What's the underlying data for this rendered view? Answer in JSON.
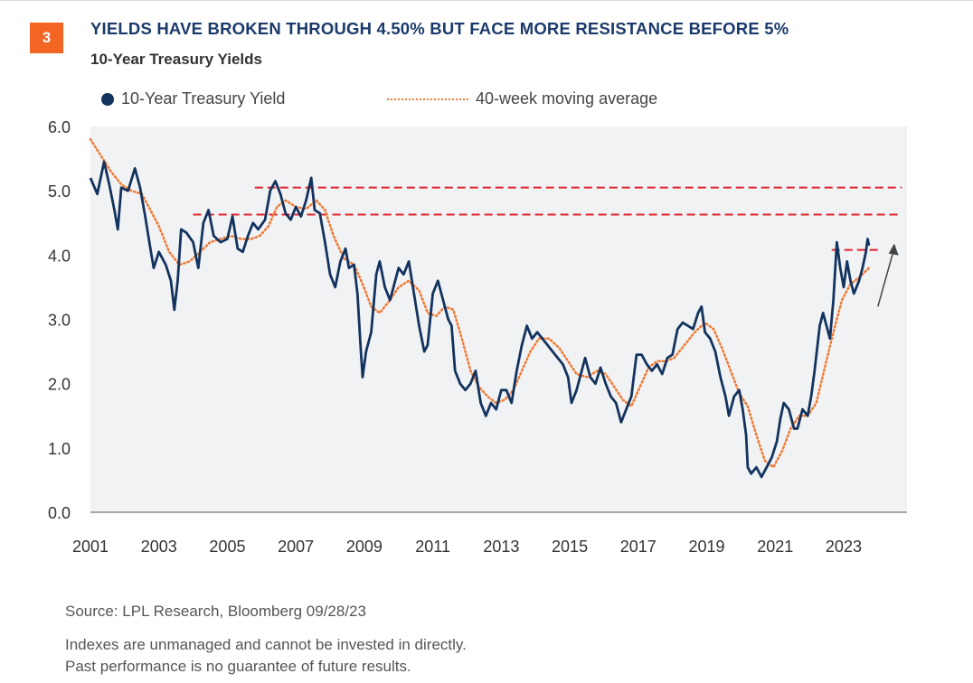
{
  "badge": "3",
  "title": "YIELDS HAVE BROKEN THROUGH 4.50% BUT FACE MORE RESISTANCE BEFORE 5%",
  "subtitle": "10-Year Treasury Yields",
  "footer": {
    "source": "Source: LPL Research, Bloomberg 09/28/23",
    "disclaimer1": "Indexes are unmanaged and cannot be invested in directly.",
    "disclaimer2": "Past performance is no guarantee of future results."
  },
  "colors": {
    "yield": "#13335f",
    "moving_average": "#f07a33",
    "resistance": "#e0242f",
    "arrow": "#444444",
    "plot_bg": "#f1f2f4"
  },
  "chart_data": {
    "type": "line",
    "legend_position": "top-left",
    "grid": false,
    "xlim": [
      2001,
      2024.85
    ],
    "ylim": [
      0,
      6.0
    ],
    "x_ticks": [
      "2001",
      "2003",
      "2005",
      "2007",
      "2009",
      "2011",
      "2013",
      "2015",
      "2017",
      "2019",
      "2021",
      "2023"
    ],
    "y_ticks": [
      "0.0",
      "1.0",
      "2.0",
      "3.0",
      "4.0",
      "5.0",
      "6.0"
    ],
    "series": [
      {
        "name": "10-Year Treasury Yield",
        "style": "line",
        "points": [
          [
            2001.0,
            5.2
          ],
          [
            2001.2,
            4.95
          ],
          [
            2001.4,
            5.45
          ],
          [
            2001.55,
            5.1
          ],
          [
            2001.7,
            4.7
          ],
          [
            2001.8,
            4.4
          ],
          [
            2001.9,
            5.05
          ],
          [
            2002.1,
            5.0
          ],
          [
            2002.3,
            5.35
          ],
          [
            2002.45,
            5.05
          ],
          [
            2002.6,
            4.6
          ],
          [
            2002.75,
            4.1
          ],
          [
            2002.85,
            3.8
          ],
          [
            2003.0,
            4.05
          ],
          [
            2003.2,
            3.85
          ],
          [
            2003.35,
            3.6
          ],
          [
            2003.45,
            3.15
          ],
          [
            2003.55,
            3.6
          ],
          [
            2003.65,
            4.4
          ],
          [
            2003.8,
            4.35
          ],
          [
            2004.0,
            4.2
          ],
          [
            2004.15,
            3.8
          ],
          [
            2004.3,
            4.5
          ],
          [
            2004.45,
            4.7
          ],
          [
            2004.6,
            4.3
          ],
          [
            2004.8,
            4.2
          ],
          [
            2005.0,
            4.25
          ],
          [
            2005.15,
            4.6
          ],
          [
            2005.3,
            4.1
          ],
          [
            2005.45,
            4.05
          ],
          [
            2005.6,
            4.3
          ],
          [
            2005.75,
            4.5
          ],
          [
            2005.9,
            4.4
          ],
          [
            2006.1,
            4.55
          ],
          [
            2006.25,
            5.0
          ],
          [
            2006.4,
            5.15
          ],
          [
            2006.55,
            4.95
          ],
          [
            2006.7,
            4.65
          ],
          [
            2006.85,
            4.55
          ],
          [
            2007.0,
            4.75
          ],
          [
            2007.15,
            4.6
          ],
          [
            2007.3,
            4.85
          ],
          [
            2007.45,
            5.2
          ],
          [
            2007.55,
            4.7
          ],
          [
            2007.7,
            4.65
          ],
          [
            2007.85,
            4.2
          ],
          [
            2008.0,
            3.7
          ],
          [
            2008.15,
            3.5
          ],
          [
            2008.3,
            3.9
          ],
          [
            2008.45,
            4.1
          ],
          [
            2008.55,
            3.8
          ],
          [
            2008.7,
            3.85
          ],
          [
            2008.8,
            3.4
          ],
          [
            2008.9,
            2.5
          ],
          [
            2008.95,
            2.1
          ],
          [
            2009.05,
            2.5
          ],
          [
            2009.2,
            2.8
          ],
          [
            2009.35,
            3.7
          ],
          [
            2009.45,
            3.9
          ],
          [
            2009.6,
            3.5
          ],
          [
            2009.75,
            3.3
          ],
          [
            2009.85,
            3.5
          ],
          [
            2010.0,
            3.8
          ],
          [
            2010.15,
            3.7
          ],
          [
            2010.3,
            3.9
          ],
          [
            2010.45,
            3.4
          ],
          [
            2010.6,
            2.9
          ],
          [
            2010.75,
            2.5
          ],
          [
            2010.85,
            2.6
          ],
          [
            2011.0,
            3.4
          ],
          [
            2011.15,
            3.6
          ],
          [
            2011.3,
            3.3
          ],
          [
            2011.45,
            3.0
          ],
          [
            2011.55,
            2.9
          ],
          [
            2011.65,
            2.2
          ],
          [
            2011.8,
            2.0
          ],
          [
            2011.95,
            1.9
          ],
          [
            2012.1,
            2.0
          ],
          [
            2012.25,
            2.2
          ],
          [
            2012.4,
            1.7
          ],
          [
            2012.55,
            1.5
          ],
          [
            2012.7,
            1.7
          ],
          [
            2012.85,
            1.6
          ],
          [
            2013.0,
            1.9
          ],
          [
            2013.15,
            1.9
          ],
          [
            2013.3,
            1.7
          ],
          [
            2013.45,
            2.2
          ],
          [
            2013.6,
            2.6
          ],
          [
            2013.75,
            2.9
          ],
          [
            2013.9,
            2.7
          ],
          [
            2014.05,
            2.8
          ],
          [
            2014.2,
            2.7
          ],
          [
            2014.35,
            2.6
          ],
          [
            2014.5,
            2.5
          ],
          [
            2014.65,
            2.4
          ],
          [
            2014.8,
            2.3
          ],
          [
            2014.95,
            2.1
          ],
          [
            2015.05,
            1.7
          ],
          [
            2015.2,
            1.9
          ],
          [
            2015.35,
            2.2
          ],
          [
            2015.45,
            2.4
          ],
          [
            2015.6,
            2.1
          ],
          [
            2015.75,
            2.0
          ],
          [
            2015.9,
            2.25
          ],
          [
            2016.05,
            2.0
          ],
          [
            2016.2,
            1.8
          ],
          [
            2016.35,
            1.7
          ],
          [
            2016.5,
            1.4
          ],
          [
            2016.65,
            1.6
          ],
          [
            2016.8,
            1.8
          ],
          [
            2016.95,
            2.45
          ],
          [
            2017.1,
            2.45
          ],
          [
            2017.25,
            2.3
          ],
          [
            2017.4,
            2.2
          ],
          [
            2017.55,
            2.3
          ],
          [
            2017.7,
            2.15
          ],
          [
            2017.85,
            2.4
          ],
          [
            2018.0,
            2.45
          ],
          [
            2018.15,
            2.85
          ],
          [
            2018.3,
            2.95
          ],
          [
            2018.45,
            2.9
          ],
          [
            2018.6,
            2.85
          ],
          [
            2018.75,
            3.1
          ],
          [
            2018.85,
            3.2
          ],
          [
            2018.95,
            2.8
          ],
          [
            2019.1,
            2.7
          ],
          [
            2019.25,
            2.5
          ],
          [
            2019.4,
            2.1
          ],
          [
            2019.55,
            1.8
          ],
          [
            2019.65,
            1.5
          ],
          [
            2019.8,
            1.8
          ],
          [
            2019.95,
            1.9
          ],
          [
            2020.05,
            1.6
          ],
          [
            2020.15,
            1.2
          ],
          [
            2020.2,
            0.7
          ],
          [
            2020.3,
            0.6
          ],
          [
            2020.45,
            0.7
          ],
          [
            2020.6,
            0.55
          ],
          [
            2020.75,
            0.7
          ],
          [
            2020.9,
            0.85
          ],
          [
            2021.05,
            1.1
          ],
          [
            2021.15,
            1.45
          ],
          [
            2021.25,
            1.7
          ],
          [
            2021.4,
            1.6
          ],
          [
            2021.55,
            1.3
          ],
          [
            2021.65,
            1.3
          ],
          [
            2021.8,
            1.6
          ],
          [
            2021.95,
            1.5
          ],
          [
            2022.05,
            1.8
          ],
          [
            2022.15,
            2.2
          ],
          [
            2022.3,
            2.9
          ],
          [
            2022.4,
            3.1
          ],
          [
            2022.5,
            2.9
          ],
          [
            2022.6,
            2.7
          ],
          [
            2022.7,
            3.3
          ],
          [
            2022.8,
            4.2
          ],
          [
            2022.9,
            3.8
          ],
          [
            2023.0,
            3.5
          ],
          [
            2023.1,
            3.9
          ],
          [
            2023.2,
            3.6
          ],
          [
            2023.3,
            3.4
          ],
          [
            2023.45,
            3.6
          ],
          [
            2023.55,
            3.8
          ],
          [
            2023.65,
            4.05
          ],
          [
            2023.7,
            4.25
          ],
          [
            2023.74,
            4.15
          ]
        ]
      },
      {
        "name": "40-week moving average",
        "style": "dotted",
        "points": [
          [
            2001.0,
            5.8
          ],
          [
            2001.3,
            5.55
          ],
          [
            2001.6,
            5.3
          ],
          [
            2001.9,
            5.1
          ],
          [
            2002.2,
            5.0
          ],
          [
            2002.5,
            4.95
          ],
          [
            2002.75,
            4.7
          ],
          [
            2003.0,
            4.45
          ],
          [
            2003.3,
            4.05
          ],
          [
            2003.6,
            3.85
          ],
          [
            2003.9,
            3.9
          ],
          [
            2004.2,
            4.05
          ],
          [
            2004.5,
            4.2
          ],
          [
            2004.8,
            4.25
          ],
          [
            2005.1,
            4.3
          ],
          [
            2005.4,
            4.25
          ],
          [
            2005.7,
            4.25
          ],
          [
            2005.95,
            4.3
          ],
          [
            2006.2,
            4.45
          ],
          [
            2006.45,
            4.75
          ],
          [
            2006.7,
            4.85
          ],
          [
            2007.0,
            4.75
          ],
          [
            2007.3,
            4.72
          ],
          [
            2007.6,
            4.85
          ],
          [
            2007.85,
            4.7
          ],
          [
            2008.1,
            4.3
          ],
          [
            2008.4,
            3.95
          ],
          [
            2008.7,
            3.85
          ],
          [
            2008.95,
            3.55
          ],
          [
            2009.2,
            3.2
          ],
          [
            2009.45,
            3.1
          ],
          [
            2009.75,
            3.3
          ],
          [
            2010.0,
            3.5
          ],
          [
            2010.3,
            3.6
          ],
          [
            2010.6,
            3.45
          ],
          [
            2010.85,
            3.1
          ],
          [
            2011.1,
            3.05
          ],
          [
            2011.35,
            3.2
          ],
          [
            2011.6,
            3.15
          ],
          [
            2011.85,
            2.7
          ],
          [
            2012.1,
            2.2
          ],
          [
            2012.35,
            1.95
          ],
          [
            2012.6,
            1.8
          ],
          [
            2012.85,
            1.7
          ],
          [
            2013.1,
            1.75
          ],
          [
            2013.35,
            1.9
          ],
          [
            2013.6,
            2.2
          ],
          [
            2013.85,
            2.5
          ],
          [
            2014.1,
            2.7
          ],
          [
            2014.4,
            2.7
          ],
          [
            2014.7,
            2.55
          ],
          [
            2014.95,
            2.35
          ],
          [
            2015.2,
            2.15
          ],
          [
            2015.5,
            2.1
          ],
          [
            2015.8,
            2.2
          ],
          [
            2016.05,
            2.15
          ],
          [
            2016.3,
            1.95
          ],
          [
            2016.55,
            1.75
          ],
          [
            2016.8,
            1.65
          ],
          [
            2017.05,
            1.95
          ],
          [
            2017.3,
            2.25
          ],
          [
            2017.55,
            2.35
          ],
          [
            2017.8,
            2.35
          ],
          [
            2018.05,
            2.4
          ],
          [
            2018.35,
            2.6
          ],
          [
            2018.65,
            2.8
          ],
          [
            2018.95,
            2.95
          ],
          [
            2019.2,
            2.85
          ],
          [
            2019.45,
            2.55
          ],
          [
            2019.7,
            2.2
          ],
          [
            2019.95,
            1.85
          ],
          [
            2020.2,
            1.65
          ],
          [
            2020.45,
            1.2
          ],
          [
            2020.7,
            0.8
          ],
          [
            2020.95,
            0.7
          ],
          [
            2021.2,
            0.95
          ],
          [
            2021.45,
            1.3
          ],
          [
            2021.7,
            1.5
          ],
          [
            2021.95,
            1.5
          ],
          [
            2022.2,
            1.7
          ],
          [
            2022.45,
            2.25
          ],
          [
            2022.7,
            2.8
          ],
          [
            2022.95,
            3.3
          ],
          [
            2023.2,
            3.55
          ],
          [
            2023.45,
            3.65
          ],
          [
            2023.74,
            3.8
          ]
        ]
      }
    ]
  }
}
